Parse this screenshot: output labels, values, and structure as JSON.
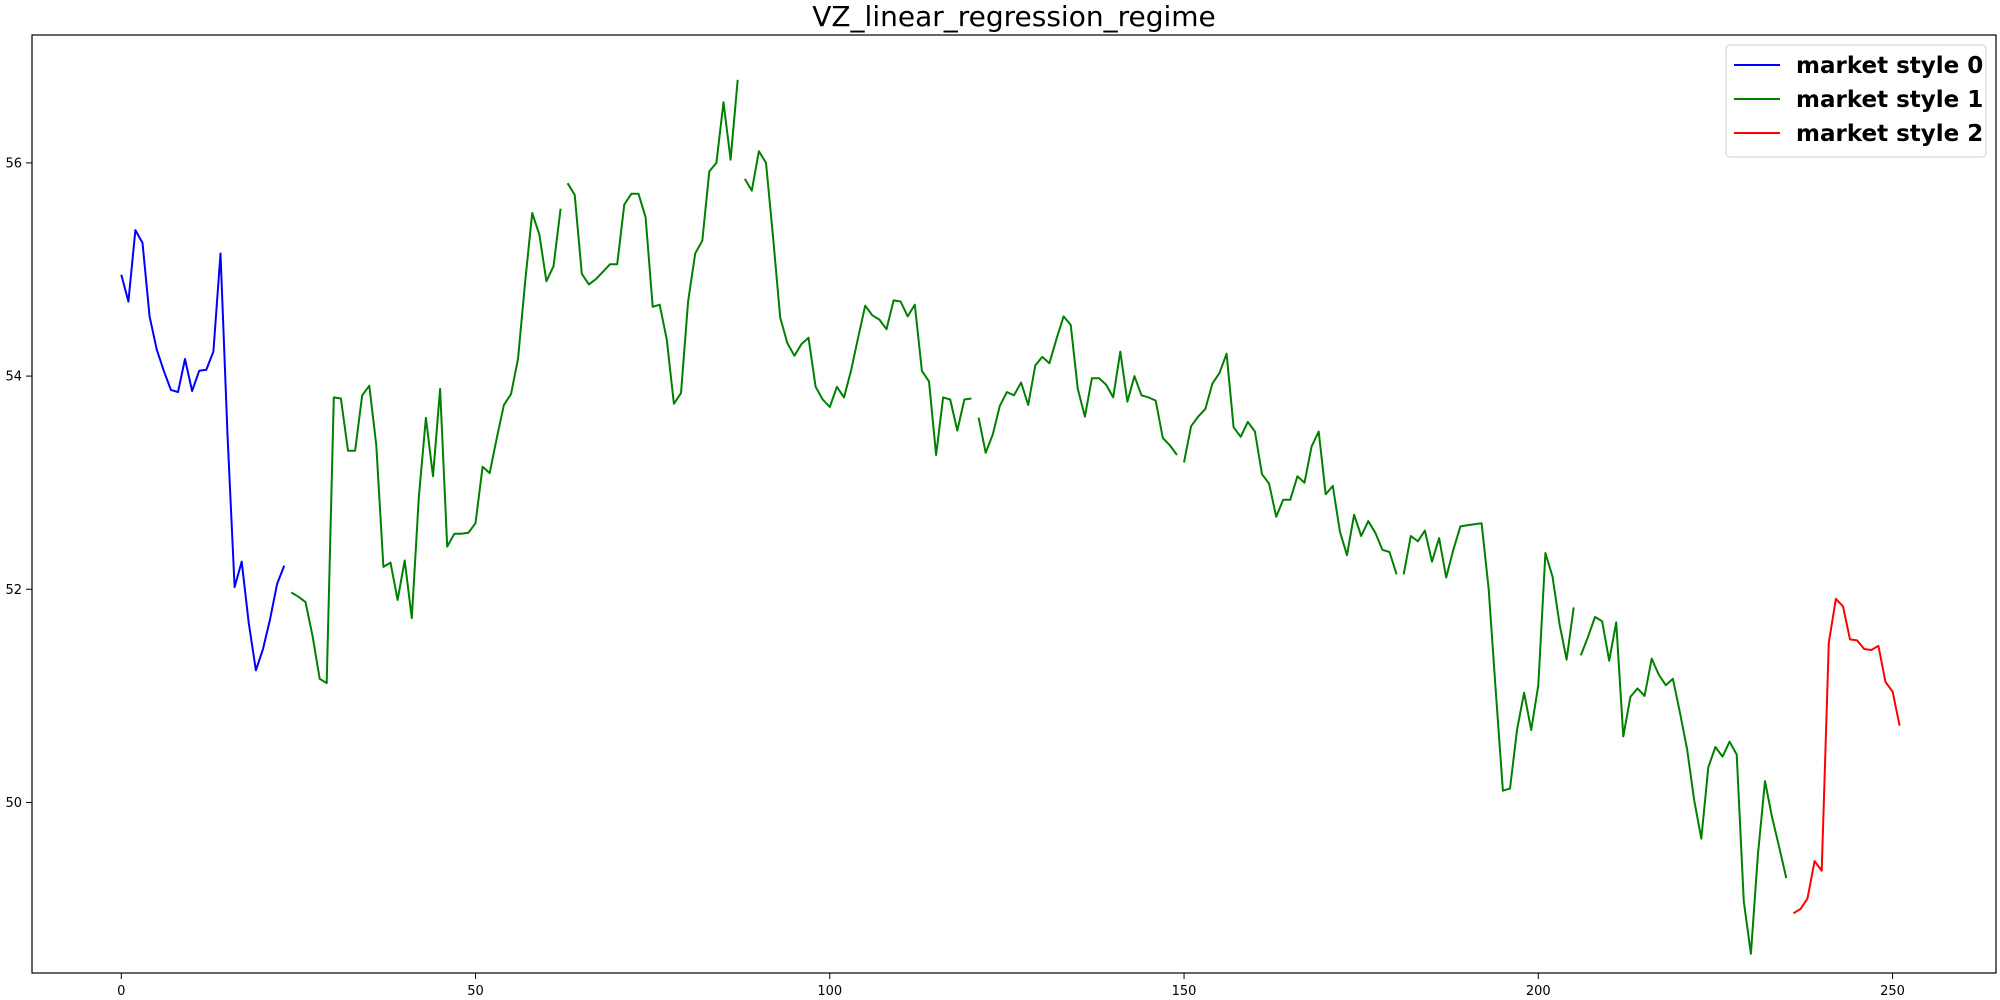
{
  "chart_data": {
    "type": "line",
    "title": "VZ_linear_regression_regime",
    "xlabel": "",
    "ylabel": "",
    "xlim": [
      -12.6,
      264.6
    ],
    "ylim": [
      48.4,
      57.2
    ],
    "xticks": [
      0,
      50,
      100,
      150,
      200,
      250
    ],
    "yticks": [
      50,
      52,
      54,
      56
    ],
    "grid": false,
    "legend_position": "top-right",
    "series": [
      {
        "name": "market style 0",
        "color": "#0000ff",
        "segments": [
          [
            [
              0,
              54.95
            ],
            [
              1,
              54.7
            ],
            [
              2,
              55.37
            ],
            [
              3,
              55.25
            ],
            [
              4,
              54.56
            ],
            [
              5,
              54.25
            ],
            [
              6,
              54.05
            ],
            [
              7,
              53.87
            ],
            [
              8,
              53.85
            ],
            [
              9,
              54.16
            ],
            [
              10,
              53.86
            ],
            [
              11,
              54.05
            ],
            [
              12,
              54.06
            ],
            [
              13,
              54.23
            ],
            [
              14,
              55.15
            ],
            [
              15,
              53.45
            ],
            [
              16,
              52.02
            ],
            [
              17,
              52.26
            ],
            [
              18,
              51.68
            ],
            [
              19,
              51.24
            ],
            [
              20,
              51.44
            ],
            [
              21,
              51.72
            ],
            [
              22,
              52.05
            ],
            [
              23,
              52.22
            ]
          ]
        ]
      },
      {
        "name": "market style 1",
        "color": "#008000",
        "segments": [
          [
            [
              24,
              51.97
            ],
            [
              25,
              51.93
            ],
            [
              26,
              51.88
            ],
            [
              27,
              51.56
            ],
            [
              28,
              51.16
            ],
            [
              29,
              51.12
            ],
            [
              30,
              53.8
            ],
            [
              31,
              53.79
            ],
            [
              32,
              53.3
            ],
            [
              33,
              53.3
            ],
            [
              34,
              53.82
            ],
            [
              35,
              53.91
            ],
            [
              36,
              53.35
            ],
            [
              37,
              52.21
            ],
            [
              38,
              52.25
            ],
            [
              39,
              51.9
            ],
            [
              40,
              52.27
            ],
            [
              41,
              51.73
            ],
            [
              42,
              52.86
            ],
            [
              43,
              53.61
            ],
            [
              44,
              53.06
            ],
            [
              45,
              53.88
            ],
            [
              46,
              52.4
            ],
            [
              47,
              52.52
            ],
            [
              48,
              52.52
            ],
            [
              49,
              52.53
            ],
            [
              50,
              52.62
            ],
            [
              51,
              53.15
            ],
            [
              52,
              53.09
            ],
            [
              53,
              53.42
            ],
            [
              54,
              53.73
            ],
            [
              55,
              53.83
            ],
            [
              56,
              54.16
            ],
            [
              57,
              54.88
            ],
            [
              58,
              55.53
            ],
            [
              59,
              55.33
            ],
            [
              60,
              54.89
            ],
            [
              61,
              55.03
            ],
            [
              62,
              55.57
            ]
          ],
          [
            [
              63,
              55.81
            ],
            [
              64,
              55.7
            ],
            [
              65,
              54.96
            ],
            [
              66,
              54.86
            ],
            [
              67,
              54.91
            ],
            [
              68,
              54.98
            ],
            [
              69,
              55.05
            ],
            [
              70,
              55.05
            ],
            [
              71,
              55.61
            ],
            [
              72,
              55.71
            ],
            [
              73,
              55.71
            ],
            [
              74,
              55.49
            ],
            [
              75,
              54.65
            ],
            [
              76,
              54.67
            ],
            [
              77,
              54.34
            ],
            [
              78,
              53.74
            ],
            [
              79,
              53.84
            ],
            [
              80,
              54.7
            ],
            [
              81,
              55.15
            ],
            [
              82,
              55.27
            ],
            [
              83,
              55.92
            ],
            [
              84,
              56.0
            ],
            [
              85,
              56.57
            ],
            [
              86,
              56.03
            ],
            [
              87,
              56.78
            ]
          ],
          [
            [
              88,
              55.85
            ],
            [
              89,
              55.74
            ],
            [
              90,
              56.11
            ],
            [
              91,
              56.0
            ],
            [
              92,
              55.3
            ],
            [
              93,
              54.55
            ],
            [
              94,
              54.31
            ],
            [
              95,
              54.19
            ],
            [
              96,
              54.3
            ],
            [
              97,
              54.36
            ],
            [
              98,
              53.9
            ],
            [
              99,
              53.78
            ],
            [
              100,
              53.71
            ],
            [
              101,
              53.9
            ],
            [
              102,
              53.8
            ],
            [
              103,
              54.05
            ],
            [
              104,
              54.36
            ],
            [
              105,
              54.66
            ],
            [
              106,
              54.57
            ],
            [
              107,
              54.53
            ],
            [
              108,
              54.44
            ],
            [
              109,
              54.71
            ],
            [
              110,
              54.7
            ],
            [
              111,
              54.56
            ],
            [
              112,
              54.67
            ],
            [
              113,
              54.05
            ],
            [
              114,
              53.95
            ],
            [
              115,
              53.26
            ],
            [
              116,
              53.8
            ],
            [
              117,
              53.78
            ],
            [
              118,
              53.49
            ],
            [
              119,
              53.78
            ],
            [
              120,
              53.79
            ]
          ],
          [
            [
              121,
              53.61
            ],
            [
              122,
              53.28
            ],
            [
              123,
              53.45
            ],
            [
              124,
              53.72
            ],
            [
              125,
              53.85
            ],
            [
              126,
              53.82
            ],
            [
              127,
              53.94
            ],
            [
              128,
              53.73
            ],
            [
              129,
              54.1
            ],
            [
              130,
              54.18
            ],
            [
              131,
              54.12
            ],
            [
              132,
              54.35
            ],
            [
              133,
              54.56
            ],
            [
              134,
              54.48
            ],
            [
              135,
              53.88
            ],
            [
              136,
              53.62
            ],
            [
              137,
              53.98
            ],
            [
              138,
              53.98
            ],
            [
              139,
              53.92
            ],
            [
              140,
              53.8
            ],
            [
              141,
              54.23
            ],
            [
              142,
              53.76
            ],
            [
              143,
              54.0
            ],
            [
              144,
              53.82
            ],
            [
              145,
              53.8
            ],
            [
              146,
              53.77
            ],
            [
              147,
              53.42
            ],
            [
              148,
              53.35
            ],
            [
              149,
              53.26
            ]
          ],
          [
            [
              150,
              53.19
            ],
            [
              151,
              53.53
            ],
            [
              152,
              53.62
            ],
            [
              153,
              53.69
            ],
            [
              154,
              53.93
            ],
            [
              155,
              54.03
            ],
            [
              156,
              54.21
            ],
            [
              157,
              53.52
            ],
            [
              158,
              53.43
            ],
            [
              159,
              53.57
            ],
            [
              160,
              53.48
            ],
            [
              161,
              53.08
            ],
            [
              162,
              52.99
            ],
            [
              163,
              52.68
            ],
            [
              164,
              52.84
            ],
            [
              165,
              52.84
            ],
            [
              166,
              53.06
            ],
            [
              167,
              53.0
            ],
            [
              168,
              53.34
            ],
            [
              169,
              53.48
            ],
            [
              170,
              52.89
            ],
            [
              171,
              52.97
            ],
            [
              172,
              52.54
            ],
            [
              173,
              52.32
            ],
            [
              174,
              52.7
            ],
            [
              175,
              52.5
            ],
            [
              176,
              52.64
            ],
            [
              177,
              52.53
            ],
            [
              178,
              52.37
            ],
            [
              179,
              52.35
            ],
            [
              180,
              52.14
            ]
          ],
          [
            [
              181,
              52.14
            ],
            [
              182,
              52.5
            ],
            [
              183,
              52.45
            ],
            [
              184,
              52.55
            ],
            [
              185,
              52.26
            ],
            [
              186,
              52.48
            ],
            [
              187,
              52.11
            ],
            [
              188,
              52.37
            ],
            [
              189,
              52.59
            ],
            [
              190,
              52.6
            ],
            [
              191,
              52.61
            ],
            [
              192,
              52.62
            ],
            [
              193,
              52.0
            ],
            [
              194,
              51.04
            ],
            [
              195,
              50.11
            ],
            [
              196,
              50.13
            ],
            [
              197,
              50.68
            ],
            [
              198,
              51.03
            ],
            [
              199,
              50.68
            ],
            [
              200,
              51.1
            ],
            [
              201,
              52.34
            ],
            [
              202,
              52.12
            ],
            [
              203,
              51.67
            ],
            [
              204,
              51.34
            ],
            [
              205,
              51.83
            ]
          ],
          [
            [
              206,
              51.38
            ],
            [
              207,
              51.55
            ],
            [
              208,
              51.74
            ],
            [
              209,
              51.7
            ],
            [
              210,
              51.33
            ],
            [
              211,
              51.69
            ],
            [
              212,
              50.62
            ],
            [
              213,
              50.99
            ],
            [
              214,
              51.07
            ],
            [
              215,
              51.0
            ],
            [
              216,
              51.35
            ],
            [
              217,
              51.2
            ],
            [
              218,
              51.1
            ],
            [
              219,
              51.16
            ],
            [
              220,
              50.84
            ],
            [
              221,
              50.5
            ],
            [
              222,
              50.02
            ],
            [
              223,
              49.66
            ],
            [
              224,
              50.33
            ],
            [
              225,
              50.52
            ],
            [
              226,
              50.43
            ],
            [
              227,
              50.57
            ],
            [
              228,
              50.45
            ],
            [
              229,
              49.07
            ],
            [
              230,
              48.58
            ],
            [
              231,
              49.51
            ],
            [
              232,
              50.2
            ],
            [
              233,
              49.86
            ],
            [
              234,
              49.58
            ],
            [
              235,
              49.29
            ]
          ]
        ]
      },
      {
        "name": "market style 2",
        "color": "#ff0000",
        "segments": [
          [
            [
              236,
              48.96
            ],
            [
              237,
              49.0
            ],
            [
              238,
              49.1
            ],
            [
              239,
              49.45
            ],
            [
              240,
              49.36
            ],
            [
              241,
              51.5
            ],
            [
              242,
              51.91
            ],
            [
              243,
              51.84
            ],
            [
              244,
              51.53
            ],
            [
              245,
              51.52
            ],
            [
              246,
              51.44
            ],
            [
              247,
              51.43
            ],
            [
              248,
              51.47
            ],
            [
              249,
              51.13
            ],
            [
              250,
              51.04
            ],
            [
              251,
              50.72
            ]
          ]
        ]
      }
    ]
  }
}
